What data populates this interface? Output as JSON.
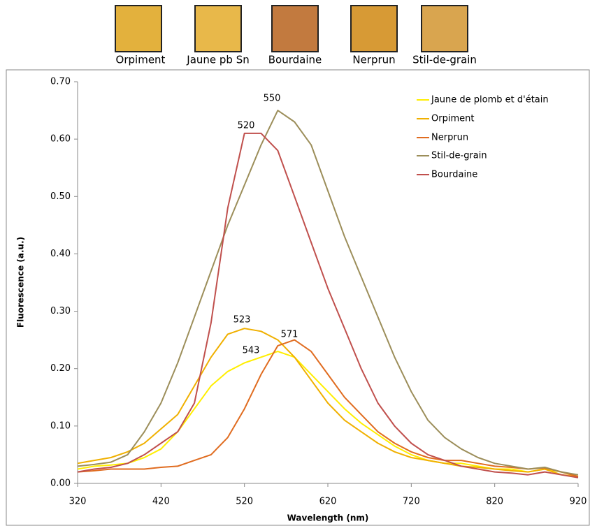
{
  "swatches": [
    "Orpiment",
    "Jaune pb Sn",
    "Bourdaine",
    "Nerprun",
    "Stil-de-grain"
  ],
  "chart_data": {
    "type": "line",
    "x_label": "Wavelength (nm)",
    "y_label": "Fluorescence (a.u.)",
    "x": [
      320,
      340,
      360,
      380,
      400,
      420,
      440,
      460,
      480,
      500,
      520,
      540,
      560,
      580,
      600,
      620,
      640,
      660,
      680,
      700,
      720,
      740,
      760,
      780,
      800,
      820,
      840,
      860,
      880,
      900,
      920
    ],
    "series": [
      {
        "name": "Jaune de plomb et d'étain",
        "color": "#ffee00",
        "values": [
          0.025,
          0.03,
          0.032,
          0.035,
          0.045,
          0.06,
          0.09,
          0.13,
          0.17,
          0.195,
          0.21,
          0.22,
          0.23,
          0.22,
          0.19,
          0.16,
          0.13,
          0.105,
          0.085,
          0.065,
          0.05,
          0.04,
          0.035,
          0.035,
          0.03,
          0.025,
          0.025,
          0.02,
          0.025,
          0.02,
          0.012
        ]
      },
      {
        "name": "Orpiment",
        "color": "#f0b000",
        "values": [
          0.035,
          0.04,
          0.045,
          0.055,
          0.07,
          0.095,
          0.12,
          0.17,
          0.22,
          0.26,
          0.27,
          0.265,
          0.25,
          0.22,
          0.18,
          0.14,
          0.11,
          0.09,
          0.07,
          0.055,
          0.045,
          0.04,
          0.035,
          0.03,
          0.028,
          0.025,
          0.022,
          0.02,
          0.025,
          0.015,
          0.012
        ]
      },
      {
        "name": "Nerprun",
        "color": "#e06c20",
        "values": [
          0.02,
          0.022,
          0.025,
          0.025,
          0.025,
          0.028,
          0.03,
          0.04,
          0.05,
          0.08,
          0.13,
          0.19,
          0.24,
          0.25,
          0.23,
          0.19,
          0.15,
          0.12,
          0.09,
          0.07,
          0.055,
          0.045,
          0.04,
          0.04,
          0.035,
          0.03,
          0.028,
          0.025,
          0.027,
          0.02,
          0.012
        ]
      },
      {
        "name": "Stil-de-grain",
        "color": "#9c8e5a",
        "values": [
          0.03,
          0.033,
          0.037,
          0.05,
          0.09,
          0.14,
          0.21,
          0.29,
          0.37,
          0.45,
          0.52,
          0.59,
          0.65,
          0.63,
          0.59,
          0.51,
          0.43,
          0.36,
          0.29,
          0.22,
          0.16,
          0.11,
          0.08,
          0.06,
          0.045,
          0.035,
          0.03,
          0.025,
          0.028,
          0.02,
          0.015
        ]
      },
      {
        "name": "Bourdaine",
        "color": "#c0504d",
        "values": [
          0.02,
          0.025,
          0.028,
          0.035,
          0.05,
          0.07,
          0.09,
          0.14,
          0.28,
          0.48,
          0.61,
          0.61,
          0.58,
          0.5,
          0.42,
          0.34,
          0.27,
          0.2,
          0.14,
          0.1,
          0.07,
          0.05,
          0.04,
          0.03,
          0.025,
          0.02,
          0.018,
          0.015,
          0.02,
          0.015,
          0.01
        ]
      }
    ],
    "annotations": [
      "550",
      "520",
      "523",
      "543",
      "571"
    ],
    "xlim": [
      320,
      920
    ],
    "xticks": [
      320,
      420,
      520,
      620,
      720,
      820,
      920
    ],
    "ylim": [
      0,
      0.7
    ],
    "yticks": [
      {
        "value": 0,
        "label": "0.00"
      },
      {
        "value": 0.1,
        "label": "0.10"
      },
      {
        "value": 0.2,
        "label": "0.20"
      },
      {
        "value": 0.3,
        "label": "0.30"
      },
      {
        "value": 0.4,
        "label": "0.40"
      },
      {
        "value": 0.5,
        "label": "0.50"
      },
      {
        "value": 0.6,
        "label": "0.60"
      },
      {
        "value": 0.7,
        "label": "0.70"
      }
    ],
    "grid": false,
    "legend": "top-right"
  }
}
